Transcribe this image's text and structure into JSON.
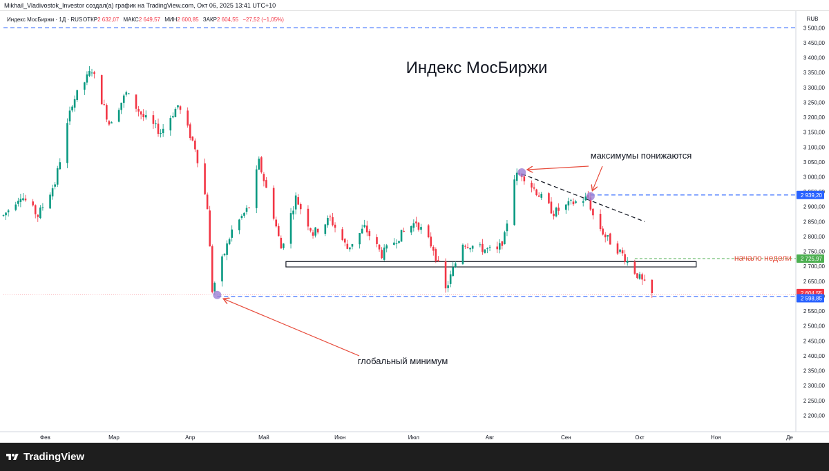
{
  "header": {
    "author_line": "Mikhail_Vladivostok_Investor создал(а) график на TradingView.com, Окт 06, 2025 13:41 UTC+10"
  },
  "legend": {
    "symbol": "Индекс МосБиржи · 1Д · RUS",
    "open_label": "ОТКР",
    "open_value": "2 632,07",
    "high_label": "МАКС",
    "high_value": "2 649,57",
    "low_label": "МИН",
    "low_value": "2 600,85",
    "close_label": "ЗАКР",
    "close_value": "2 604,55",
    "change": "−27,52 (−1,05%)"
  },
  "currency": "RUB",
  "brand": {
    "name": "TradingView"
  },
  "colors": {
    "up": "#089981",
    "down": "#f23645",
    "blue_line": "#2962ff",
    "green_line": "#4caf50",
    "annotation_red": "#e74c3c",
    "marker": "#9b7fd4"
  },
  "chart_data": {
    "type": "candlestick",
    "title": "Индекс МосБиржи",
    "yaxis": {
      "min": 2150,
      "max": 3510,
      "step": 50,
      "ticks": [
        "2 200,00",
        "2 250,00",
        "2 300,00",
        "2 350,00",
        "2 400,00",
        "2 450,00",
        "2 500,00",
        "2 550,00",
        "2 600,00",
        "2 650,00",
        "2 700,00",
        "2 750,00",
        "2 800,00",
        "2 850,00",
        "2 900,00",
        "2 950,00",
        "3 000,00",
        "3 050,00",
        "3 100,00",
        "3 150,00",
        "3 200,00",
        "3 250,00",
        "3 300,00",
        "3 350,00",
        "3 400,00",
        "3 450,00",
        "3 500,00"
      ]
    },
    "xaxis": {
      "start": "2025-01-15",
      "end": "2025-12-03",
      "months": [
        {
          "label": "Фев",
          "date": "2025-02-01"
        },
        {
          "label": "Мар",
          "date": "2025-03-01"
        },
        {
          "label": "Апр",
          "date": "2025-04-01"
        },
        {
          "label": "Май",
          "date": "2025-05-01"
        },
        {
          "label": "Июн",
          "date": "2025-06-01"
        },
        {
          "label": "Июл",
          "date": "2025-07-01"
        },
        {
          "label": "Авг",
          "date": "2025-08-01"
        },
        {
          "label": "Сен",
          "date": "2025-09-01"
        },
        {
          "label": "Окт",
          "date": "2025-10-01"
        },
        {
          "label": "Ноя",
          "date": "2025-11-01"
        },
        {
          "label": "Де",
          "date": "2025-12-01"
        }
      ]
    },
    "path": [
      [
        "2025-01-15",
        2870
      ],
      [
        "2025-01-22",
        2940
      ],
      [
        "2025-01-29",
        2870
      ],
      [
        "2025-02-05",
        2980
      ],
      [
        "2025-02-12",
        3250
      ],
      [
        "2025-02-20",
        3360
      ],
      [
        "2025-02-27",
        3180
      ],
      [
        "2025-03-06",
        3280
      ],
      [
        "2025-03-13",
        3200
      ],
      [
        "2025-03-20",
        3150
      ],
      [
        "2025-03-27",
        3240
      ],
      [
        "2025-04-03",
        3100
      ],
      [
        "2025-04-08",
        2900
      ],
      [
        "2025-04-10",
        2620
      ],
      [
        "2025-04-18",
        2820
      ],
      [
        "2025-04-25",
        2900
      ],
      [
        "2025-04-29",
        3050
      ],
      [
        "2025-05-05",
        2870
      ],
      [
        "2025-05-08",
        2760
      ],
      [
        "2025-05-14",
        2930
      ],
      [
        "2025-05-21",
        2810
      ],
      [
        "2025-05-28",
        2860
      ],
      [
        "2025-06-04",
        2760
      ],
      [
        "2025-06-11",
        2830
      ],
      [
        "2025-06-18",
        2740
      ],
      [
        "2025-06-25",
        2800
      ],
      [
        "2025-07-02",
        2850
      ],
      [
        "2025-07-09",
        2760
      ],
      [
        "2025-07-14",
        2620
      ],
      [
        "2025-07-21",
        2780
      ],
      [
        "2025-07-28",
        2760
      ],
      [
        "2025-08-04",
        2750
      ],
      [
        "2025-08-07",
        2800
      ],
      [
        "2025-08-11",
        3000
      ],
      [
        "2025-08-14",
        3010
      ],
      [
        "2025-08-20",
        2950
      ],
      [
        "2025-08-27",
        2880
      ],
      [
        "2025-09-03",
        2910
      ],
      [
        "2025-09-10",
        2930
      ],
      [
        "2025-09-12",
        2870
      ],
      [
        "2025-09-17",
        2800
      ],
      [
        "2025-09-24",
        2740
      ],
      [
        "2025-10-01",
        2660
      ],
      [
        "2025-10-06",
        2605
      ]
    ],
    "current_price_line": {
      "value": 2604.55,
      "label": "2 604,55"
    },
    "horizontal_lines": [
      {
        "name": "top",
        "value": 3500
      },
      {
        "name": "resistance",
        "value": 2939.2,
        "label": "2 939,20"
      },
      {
        "name": "support",
        "value": 2598.85,
        "label": "2 598,85"
      },
      {
        "name": "week-open",
        "value": 2725.97,
        "label": "2 725,97"
      }
    ],
    "zone": {
      "from": "2025-05-10",
      "to": "2025-10-24",
      "low": 2698,
      "high": 2716
    },
    "trendline": {
      "from": [
        "2025-08-14",
        3010
      ],
      "to": [
        "2025-10-03",
        2850
      ]
    },
    "markers": [
      {
        "date": "2025-04-12",
        "value": 2604
      },
      {
        "date": "2025-08-14",
        "value": 3015
      },
      {
        "date": "2025-09-11",
        "value": 2935
      }
    ],
    "annotations": {
      "highs_lower": "максимумы понижаются",
      "global_min": "глобальный минимум",
      "week_start": "начало недели"
    }
  }
}
